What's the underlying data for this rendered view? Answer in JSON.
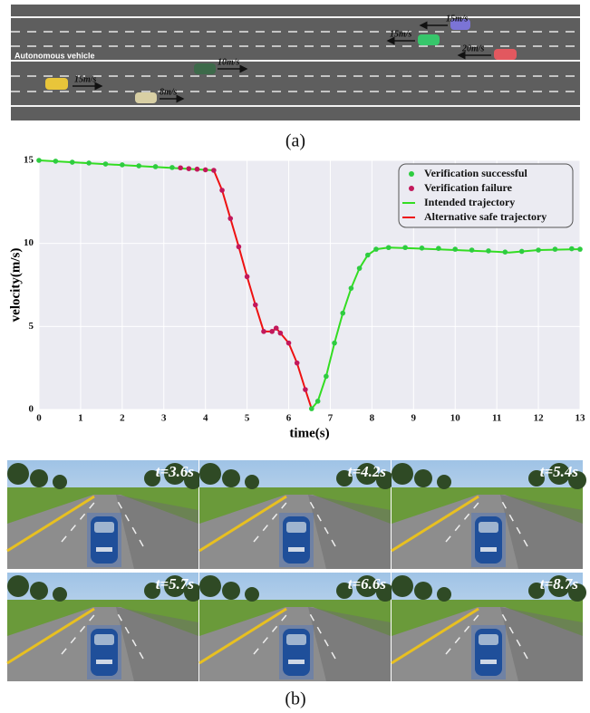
{
  "road_scene": {
    "ego_label": "Autonomous vehicle",
    "speeds": [
      "15m/s",
      "10m/s",
      "8m/s",
      "15m/s",
      "15m/s",
      "20m/s"
    ],
    "caption": "(a)"
  },
  "chart_data": {
    "type": "line",
    "xlabel": "time(s)",
    "ylabel": "velocity(m/s)",
    "xlim": [
      0,
      13
    ],
    "xticks": [
      0,
      1,
      2,
      3,
      4,
      5,
      6,
      7,
      8,
      9,
      10,
      11,
      12,
      13
    ],
    "ylim": [
      0,
      15
    ],
    "yticks": [
      0,
      5,
      10,
      15
    ],
    "grid": true,
    "legend": "upper right",
    "series": [
      {
        "name": "Verification successful",
        "style": "marker",
        "color": "#2ecc40",
        "x": [
          0,
          0.4,
          0.8,
          1.2,
          1.6,
          2.0,
          2.4,
          2.8,
          3.2,
          6.55,
          6.7,
          6.9,
          7.1,
          7.3,
          7.5,
          7.7,
          7.9,
          8.1,
          8.4,
          8.8,
          9.2,
          9.6,
          10.0,
          10.4,
          10.8,
          11.2,
          11.6,
          12.0,
          12.4,
          12.8,
          13.0
        ],
        "values": [
          15,
          14.95,
          14.89,
          14.84,
          14.78,
          14.73,
          14.67,
          14.62,
          14.57,
          0.05,
          0.5,
          2.0,
          4.0,
          5.8,
          7.3,
          8.5,
          9.3,
          9.65,
          9.75,
          9.75,
          9.72,
          9.7,
          9.65,
          9.6,
          9.55,
          9.48,
          9.52,
          9.6,
          9.65,
          9.68,
          9.65
        ]
      },
      {
        "name": "Verification failure",
        "style": "marker",
        "color": "#c2185b",
        "x": [
          3.4,
          3.6,
          3.8,
          4.0,
          4.2,
          4.4,
          4.6,
          4.8,
          5.0,
          5.2,
          5.4,
          5.6,
          5.7,
          5.8,
          6.0,
          6.2,
          6.4
        ],
        "values": [
          14.55,
          14.5,
          14.47,
          14.43,
          14.4,
          13.2,
          11.5,
          9.8,
          8.0,
          6.3,
          4.7,
          4.7,
          4.9,
          4.6,
          4.0,
          2.8,
          1.2
        ]
      },
      {
        "name": "Intended trajectory",
        "style": "line",
        "color": "#33dd22",
        "x": [
          0,
          4.2,
          null,
          6.55,
          6.7,
          6.9,
          7.1,
          7.3,
          7.5,
          7.7,
          7.9,
          8.1,
          8.4,
          9,
          10,
          11,
          11.3,
          12,
          13
        ],
        "values": [
          15,
          14.4,
          null,
          0.05,
          0.5,
          2.0,
          4.0,
          5.8,
          7.3,
          8.5,
          9.3,
          9.65,
          9.75,
          9.7,
          9.6,
          9.5,
          9.45,
          9.6,
          9.65
        ]
      },
      {
        "name": "Alternative safe trajectory",
        "style": "line",
        "color": "#ee1111",
        "x": [
          4.2,
          4.4,
          4.6,
          4.8,
          5.0,
          5.2,
          5.4,
          5.6,
          5.7,
          5.8,
          6.0,
          6.2,
          6.4,
          6.55
        ],
        "values": [
          14.4,
          13.2,
          11.5,
          9.8,
          8.0,
          6.3,
          4.7,
          4.7,
          4.9,
          4.6,
          4.0,
          2.8,
          1.2,
          0.05
        ]
      }
    ]
  },
  "simulation_frames": {
    "times": [
      "t=3.6s",
      "t=4.2s",
      "t=5.4s",
      "t=5.7s",
      "t=6.6s",
      "t=8.7s"
    ],
    "caption": "(b)"
  }
}
